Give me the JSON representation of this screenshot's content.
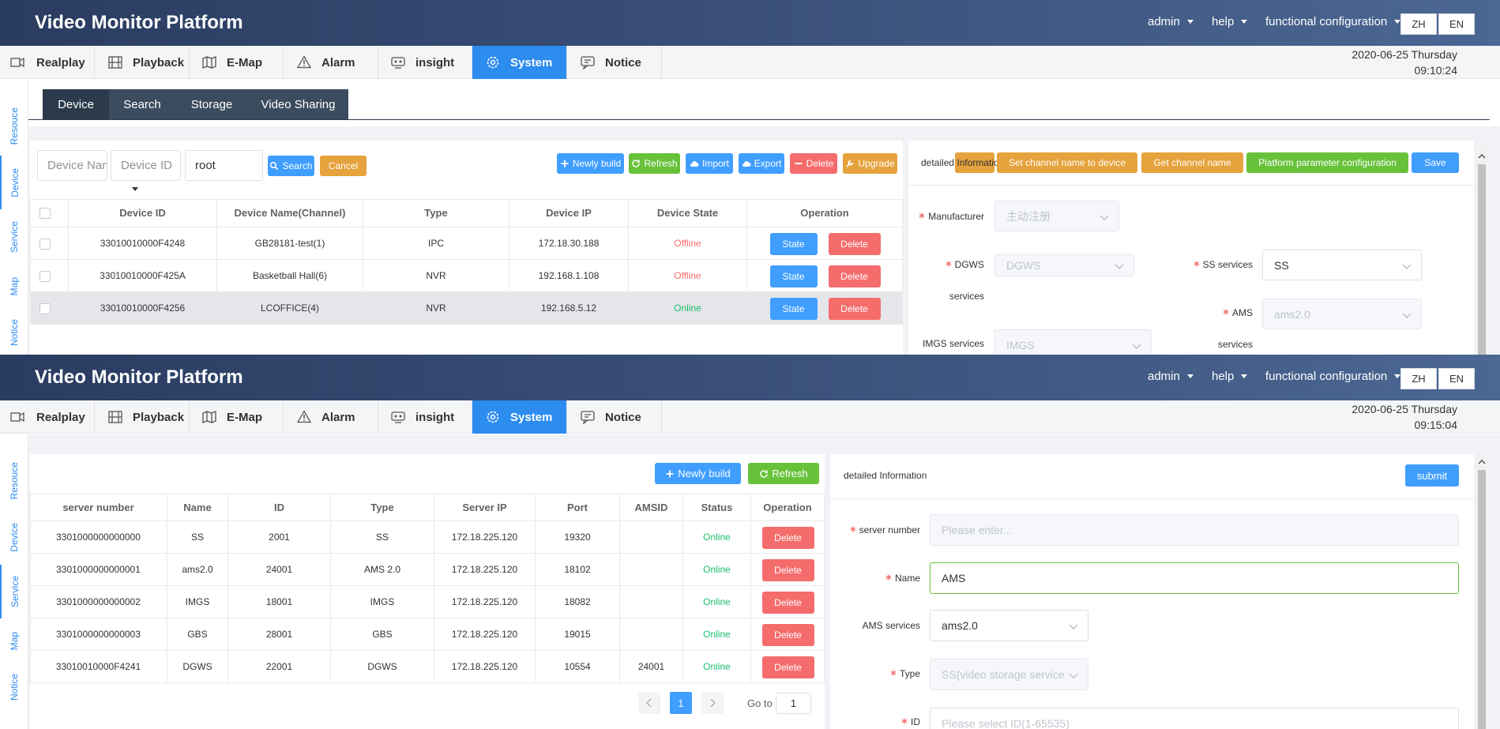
{
  "header": {
    "title": "Video Monitor Platform",
    "menus": [
      "admin",
      "help",
      "functional configuration"
    ],
    "languages": [
      "ZH",
      "EN"
    ]
  },
  "nav_tabs": [
    "Realplay",
    "Playback",
    "E-Map",
    "Alarm",
    "insight",
    "System",
    "Notice"
  ],
  "side_tabs": [
    "Resouce",
    "Device",
    "Service",
    "Map",
    "Notice"
  ],
  "screens": [
    {
      "datetime": [
        "2020-06-25 Thursday",
        "09:10:24"
      ],
      "sub_tabs": [
        "Device",
        "Search",
        "Storage",
        "Video Sharing"
      ],
      "filters": {
        "inputs": [
          "Device Name",
          "Device ID",
          "root"
        ],
        "buttons": [
          "Search",
          "Cancel"
        ]
      },
      "toolbar": [
        "Newly build",
        "Refresh",
        "Import",
        "Export",
        "Delete",
        "Upgrade"
      ],
      "table": {
        "columns": [
          "Device ID",
          "Device Name(Channel)",
          "Type",
          "Device IP",
          "Device State",
          "Operation"
        ],
        "rows": [
          [
            "33010010000F4248",
            "GB28181-test(1)",
            "IPC",
            "172.18.30.188",
            "Offline"
          ],
          [
            "33010010000F425A",
            "Basketball Hall(6)",
            "NVR",
            "192.168.1.108",
            "Offline"
          ],
          [
            "33010010000F4256",
            "LCOFFICE(4)",
            "NVR",
            "192.168.5.12",
            "Online"
          ]
        ],
        "row_actions": [
          "State",
          "Delete"
        ],
        "status_colors": {
          "Offline": "#f56c6c",
          "Online": "#19be6b"
        }
      },
      "detail": {
        "title": "detailed Information",
        "buttons": [
          "Set channel name to device",
          "Get channel name",
          "Platform parameter configuration",
          "Save"
        ],
        "fields": [
          {
            "label": "Manufacturer",
            "value": "主动注册",
            "required": true
          },
          {
            "label": "DGWS services",
            "value": "DGWS",
            "required": true
          },
          {
            "label": "SS services",
            "value": "SS",
            "required": true
          },
          {
            "label": "AMS services",
            "value": "ams2.0",
            "required": true
          },
          {
            "label": "IMGS services",
            "value": "IMGS",
            "required": false
          }
        ]
      }
    },
    {
      "datetime": [
        "2020-06-25 Thursday",
        "09:15:04"
      ],
      "toolbar": [
        "Newly build",
        "Refresh"
      ],
      "table": {
        "columns": [
          "server number",
          "Name",
          "ID",
          "Type",
          "Server IP",
          "Port",
          "AMSID",
          "Status",
          "Operation"
        ],
        "rows": [
          [
            "3301000000000000",
            "SS",
            "2001",
            "SS",
            "172.18.225.120",
            "19320",
            "",
            "Online"
          ],
          [
            "3301000000000001",
            "ams2.0",
            "24001",
            "AMS 2.0",
            "172.18.225.120",
            "18102",
            "",
            "Online"
          ],
          [
            "3301000000000002",
            "IMGS",
            "18001",
            "IMGS",
            "172.18.225.120",
            "18082",
            "",
            "Online"
          ],
          [
            "3301000000000003",
            "GBS",
            "28001",
            "GBS",
            "172.18.225.120",
            "19015",
            "",
            "Online"
          ],
          [
            "33010010000F4241",
            "DGWS",
            "22001",
            "DGWS",
            "172.18.225.120",
            "10554",
            "24001",
            "Online"
          ]
        ],
        "row_actions": [
          "Delete"
        ],
        "status_colors": {
          "Online": "#19be6b"
        }
      },
      "pagination": {
        "page": "1",
        "goto_label": "Go to",
        "goto_value": "1"
      },
      "detail": {
        "title": "detailed Information",
        "buttons": [
          "submit"
        ],
        "fields": [
          {
            "label": "server number",
            "placeholder": "Please enter...",
            "required": true
          },
          {
            "label": "Name",
            "value": "AMS",
            "required": true
          },
          {
            "label": "AMS services",
            "value": "ams2.0",
            "required": false
          },
          {
            "label": "Type",
            "value": "SS(video storage service)",
            "required": true
          },
          {
            "label": "ID",
            "placeholder": "Please select ID(1-65535)",
            "required": true
          }
        ]
      }
    }
  ]
}
